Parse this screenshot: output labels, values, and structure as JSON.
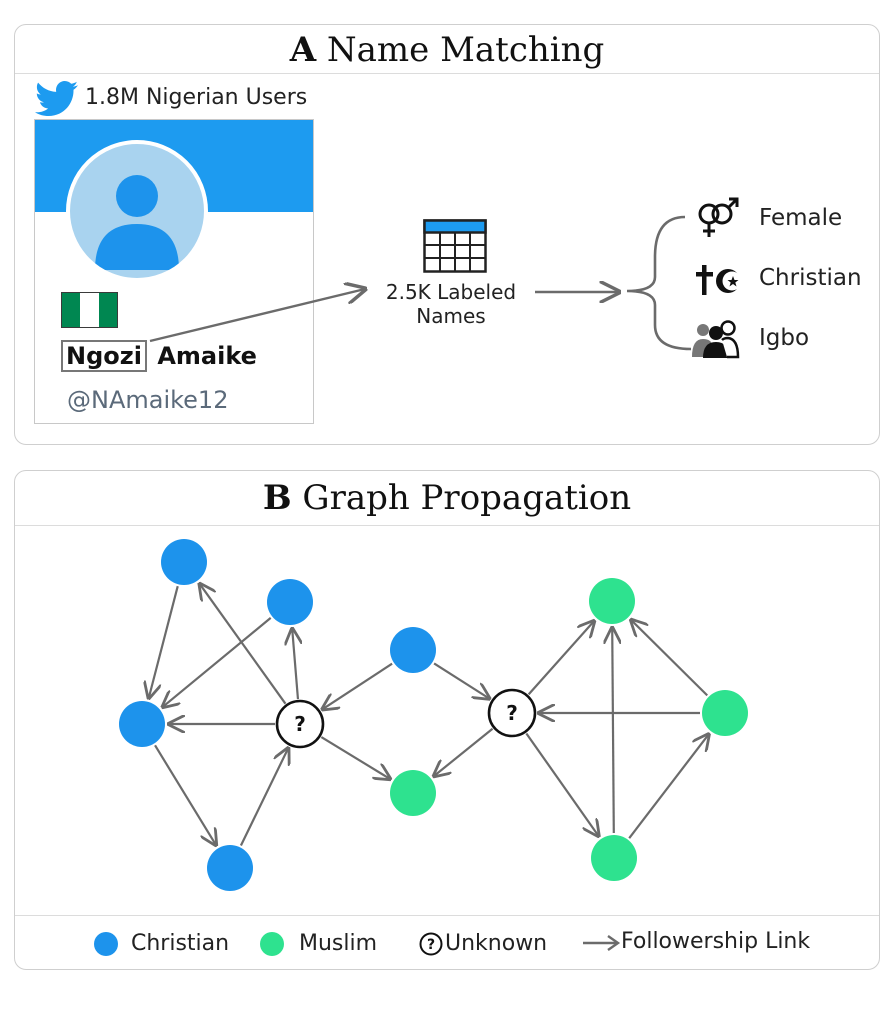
{
  "panel_a": {
    "letter": "A",
    "title": "Name Matching",
    "users_label": "1.8M Nigerian Users",
    "profile": {
      "first_name": "Ngozi",
      "last_name": "Amaike",
      "handle": "@NAmaike12"
    },
    "labeled_names": {
      "line1": "2.5K Labeled",
      "line2": "Names"
    },
    "attributes": [
      {
        "label": "Female",
        "icon": "gender-icon"
      },
      {
        "label": "Christian",
        "icon": "religion-icon"
      },
      {
        "label": "Igbo",
        "icon": "ethnic-group-icon"
      }
    ]
  },
  "panel_b": {
    "letter": "B",
    "title": "Graph Propagation",
    "unknown_mark": "?",
    "legend": {
      "christian": "Christian",
      "muslim": "Muslim",
      "unknown": "Unknown",
      "link": "Followership Link"
    }
  },
  "colors": {
    "christian": "#1d93ec",
    "muslim": "#2ee28f",
    "twitter": "#1d9bf0",
    "arrow": "#6b6b6b",
    "nigeria_green": "#008751"
  },
  "graph": {
    "nodes": [
      {
        "id": "c1",
        "type": "christian"
      },
      {
        "id": "c2",
        "type": "christian"
      },
      {
        "id": "c3",
        "type": "christian"
      },
      {
        "id": "c4",
        "type": "christian"
      },
      {
        "id": "c5",
        "type": "christian"
      },
      {
        "id": "u1",
        "type": "unknown"
      },
      {
        "id": "m1",
        "type": "muslim"
      },
      {
        "id": "u2",
        "type": "unknown"
      },
      {
        "id": "m2",
        "type": "muslim"
      },
      {
        "id": "m3",
        "type": "muslim"
      },
      {
        "id": "m4",
        "type": "muslim"
      }
    ],
    "edges": [
      [
        "c1",
        "c3"
      ],
      [
        "c2",
        "c3"
      ],
      [
        "u1",
        "c1"
      ],
      [
        "u1",
        "c2"
      ],
      [
        "u1",
        "c3"
      ],
      [
        "c3",
        "c4"
      ],
      [
        "c4",
        "u1"
      ],
      [
        "u1",
        "m1"
      ],
      [
        "c5",
        "u1"
      ],
      [
        "c5",
        "u2"
      ],
      [
        "u2",
        "m1"
      ],
      [
        "u2",
        "m2"
      ],
      [
        "u2",
        "m4"
      ],
      [
        "m3",
        "u2"
      ],
      [
        "m3",
        "m2"
      ],
      [
        "m4",
        "m2"
      ],
      [
        "m4",
        "m3"
      ]
    ]
  }
}
